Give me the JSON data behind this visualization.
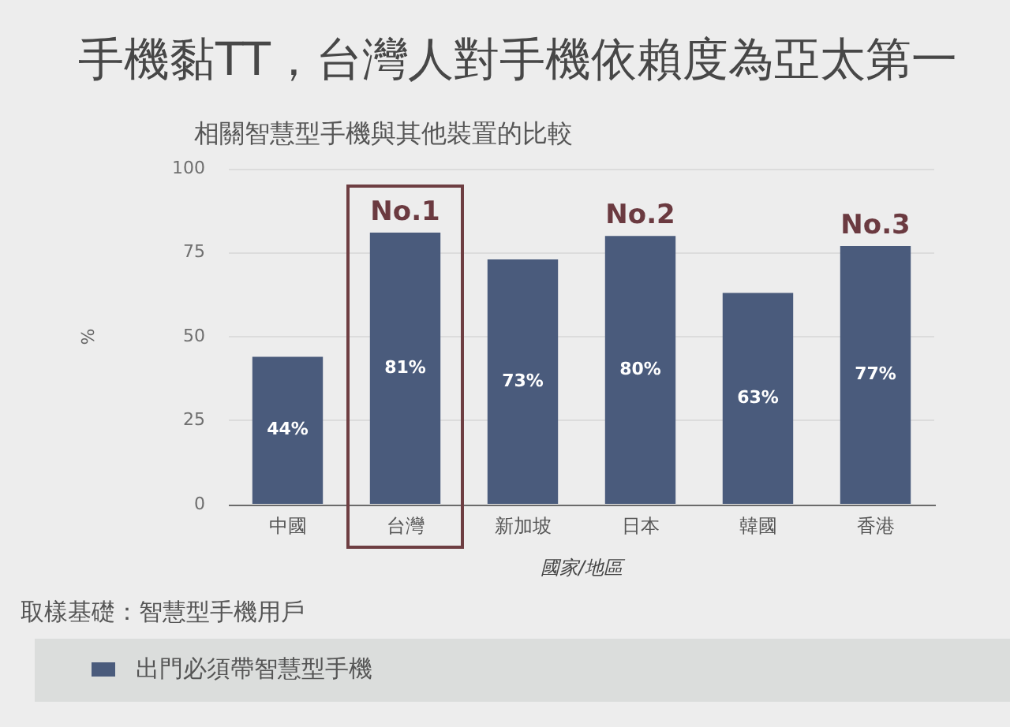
{
  "chart_data": {
    "type": "bar",
    "title": "手機黏TT，台灣人對手機依賴度為亞太第一",
    "subtitle": "相關智慧型手機與其他裝置的比較",
    "xlabel": "國家/地區",
    "ylabel": "%",
    "categories": [
      "中國",
      "台灣",
      "新加坡",
      "日本",
      "韓國",
      "香港"
    ],
    "series": [
      {
        "name": "出門必須帶智慧型手機",
        "color": "#4a5b7c",
        "values": [
          44,
          81,
          73,
          80,
          63,
          77
        ],
        "value_labels": [
          "44%",
          "81%",
          "73%",
          "80%",
          "63%",
          "77%"
        ]
      }
    ],
    "ylim": [
      0,
      100
    ],
    "yticks": [
      0,
      25,
      50,
      75,
      100
    ],
    "grid": "y",
    "legend": "bottom",
    "annotations": [
      {
        "text": "No.1",
        "x": "台灣",
        "y": 81
      },
      {
        "text": "No.2",
        "x": "日本",
        "y": 80
      },
      {
        "text": "No.3",
        "x": "香港",
        "y": 77
      },
      "取樣基礎：智慧型手機用戶"
    ]
  }
}
